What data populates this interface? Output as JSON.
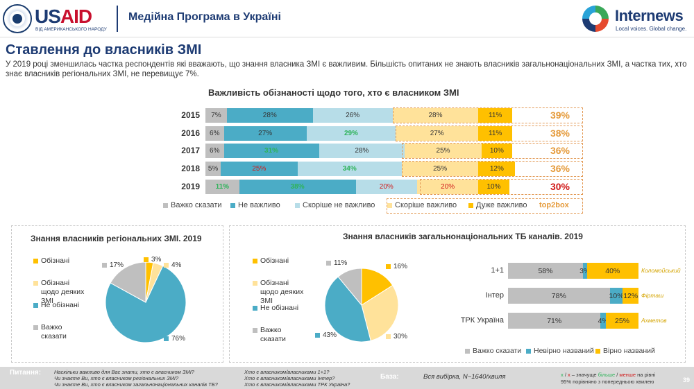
{
  "header": {
    "usaid_us": "US",
    "usaid_aid": "AID",
    "usaid_sub": "ВІД АМЕРИКАНСЬКОГО НАРОДУ",
    "program_title": "Медійна Програма в Україні",
    "internews_name": "Internews",
    "internews_tag": "Local voices. Global change."
  },
  "title": "Ставлення до власників ЗМІ",
  "intro": "У 2019 році зменшилась частка респондентів які вважають, що знання власника ЗМІ є важливим. Більшість опитаних не знають власників загальнонаціональних ЗМІ,  а частка тих, хто знає власників регіональних ЗМІ, не перевищує 7%.",
  "colors": {
    "hard_to_say": "#bfbfbf",
    "not_important": "#4bacc6",
    "rather_not_important": "#b7dde8",
    "rather_important": "#ffe29a",
    "very_important": "#ffc000",
    "top2": "#e59a3a",
    "navy": "#1d3b73"
  },
  "chart_data": [
    {
      "type": "bar",
      "title": "Важливість обізнаності щодо того, хто є власником ЗМІ",
      "categories": [
        "2015",
        "2016",
        "2017",
        "2018",
        "2019"
      ],
      "series": [
        {
          "name": "Важко сказати",
          "values": [
            7,
            6,
            6,
            5,
            11
          ],
          "labels": [
            "7%",
            "6%",
            "6%",
            "5%",
            "11%"
          ]
        },
        {
          "name": "Не важливо",
          "values": [
            28,
            27,
            31,
            25,
            38
          ],
          "labels": [
            "28%",
            "27%",
            "31%",
            "25%",
            "38%"
          ]
        },
        {
          "name": "Скоріше не важливо",
          "values": [
            26,
            29,
            28,
            34,
            20
          ],
          "labels": [
            "26%",
            "29%",
            "28%",
            "34%",
            "20%"
          ]
        },
        {
          "name": "Скоріше важливо",
          "values": [
            28,
            27,
            25,
            25,
            20
          ],
          "labels": [
            "28%",
            "27%",
            "25%",
            "25%",
            "20%"
          ]
        },
        {
          "name": "Дуже важливо",
          "values": [
            11,
            11,
            10,
            12,
            10
          ],
          "labels": [
            "11%",
            "11%",
            "10%",
            "12%",
            "10%"
          ]
        }
      ],
      "top2box": {
        "name": "top2box",
        "values": [
          39,
          38,
          36,
          36,
          30
        ],
        "labels": [
          "39%",
          "38%",
          "36%",
          "36%",
          "30%"
        ]
      },
      "stacked": true,
      "orientation": "horizontal"
    },
    {
      "type": "pie",
      "title": "Знання власників регіональних ЗМІ. 2019",
      "categories": [
        "Обізнані",
        "Обізнані щодо деяких ЗМІ",
        "Не обізнані",
        "Важко сказати"
      ],
      "values": [
        3,
        4,
        76,
        17
      ],
      "labels": [
        "3%",
        "4%",
        "76%",
        "17%"
      ]
    },
    {
      "type": "pie",
      "title": "Знання власників загальнонаціональних ТБ каналів. 2019",
      "categories": [
        "Обізнані",
        "Обізнані щодо деяких ЗМІ",
        "Не обізнані",
        "Важко сказати"
      ],
      "values": [
        16,
        30,
        43,
        11
      ],
      "labels": [
        "16%",
        "30%",
        "43%",
        "11%"
      ]
    },
    {
      "type": "bar",
      "categories": [
        "1+1",
        "Інтер",
        "ТРК Україна"
      ],
      "owners": [
        "Коломойський",
        "Фірташ",
        "Ахметов"
      ],
      "series": [
        {
          "name": "Важко сказати",
          "values": [
            58,
            78,
            71
          ],
          "labels": [
            "58%",
            "78%",
            "71%"
          ]
        },
        {
          "name": "Невірно названий",
          "values": [
            3,
            10,
            4
          ],
          "labels": [
            "3%",
            "10%",
            "4%"
          ]
        },
        {
          "name": "Вірно названий",
          "values": [
            40,
            12,
            25
          ],
          "labels": [
            "40%",
            "12%",
            "25%"
          ]
        }
      ],
      "stacked": true,
      "orientation": "horizontal"
    }
  ],
  "pie_legend": [
    "Обізнані",
    "Обізнані щодо деяких ЗМІ",
    "Не обізнані",
    "Важко сказати"
  ],
  "footer": {
    "questions_label": "Питання:",
    "q1": "Наскільки важливо для Вас знати, хто є власником ЗМІ?",
    "q2": "Чи знаєте Ви, хто є власником регіональних ЗМІ?",
    "q3": "Чи знаєте Ви, хто є власником загальнонаціональних каналів ТБ?",
    "q4": "Хто є власником/власниками 1+1?",
    "q5": "Хто є власником/власниками Інтер?",
    "q6": "Хто є власником/власниками ТРК Україна?",
    "base_label": "База:",
    "base_value": "Вся вибірка,  N~1640/хвиля",
    "note_x1": "x",
    "note_slash": " / ",
    "note_x2": "x",
    "note_mid": " – значуще ",
    "note_more": "більше",
    "note_less": "менше",
    "note_end": " на рівні",
    "note_line2": "95% порівняно з попередньою хвилею",
    "page_number": "39"
  }
}
